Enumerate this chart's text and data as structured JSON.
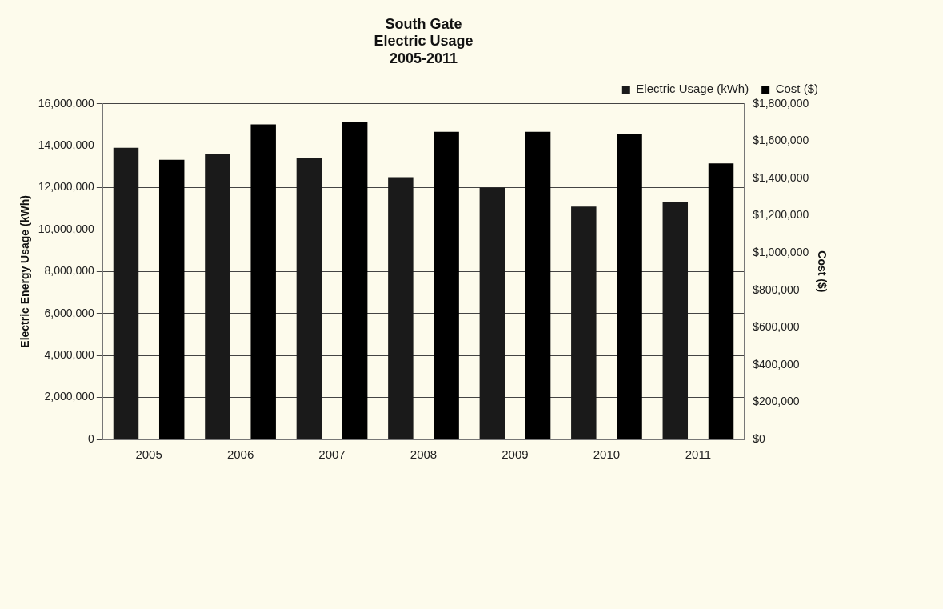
{
  "chart_data": {
    "type": "bar",
    "title": "South Gate\nElectric Usage\n2005-2011",
    "ylabel": "Electric Energy Usage (kWh)",
    "y2label": "Cost ($)",
    "categories": [
      "2005",
      "2006",
      "2007",
      "2008",
      "2009",
      "2010",
      "2011"
    ],
    "series": [
      {
        "name": "Electric Usage (kWh)",
        "color": "#1a1a1a",
        "values": [
          13900000,
          13600000,
          13400000,
          12500000,
          12000000,
          11100000,
          11300000
        ]
      },
      {
        "name": "Cost ($)",
        "color": "#000000",
        "axis": "y2",
        "values": [
          1500000,
          1690000,
          1700000,
          1650000,
          1650000,
          1640000,
          1480000
        ]
      }
    ],
    "ylim": [
      0,
      16000000
    ],
    "yticks": [
      {
        "value": 0,
        "label": "0"
      },
      {
        "value": 2000000,
        "label": "2,000,000"
      },
      {
        "value": 4000000,
        "label": "4,000,000"
      },
      {
        "value": 6000000,
        "label": "6,000,000"
      },
      {
        "value": 8000000,
        "label": "8,000,000"
      },
      {
        "value": 10000000,
        "label": "10,000,000"
      },
      {
        "value": 12000000,
        "label": "12,000,000"
      },
      {
        "value": 14000000,
        "label": "14,000,000"
      },
      {
        "value": 16000000,
        "label": "16,000,000"
      }
    ],
    "y2lim": [
      0,
      1800000
    ],
    "y2ticks": [
      {
        "value": 0,
        "label": "$0"
      },
      {
        "value": 200000,
        "label": "$200,000"
      },
      {
        "value": 400000,
        "label": "$400,000"
      },
      {
        "value": 600000,
        "label": "$600,000"
      },
      {
        "value": 800000,
        "label": "$800,000"
      },
      {
        "value": 1000000,
        "label": "$1,000,000"
      },
      {
        "value": 1200000,
        "label": "$1,200,000"
      },
      {
        "value": 1400000,
        "label": "$1,400,000"
      },
      {
        "value": 1600000,
        "label": "$1,600,000"
      },
      {
        "value": 1800000,
        "label": "$1,800,000"
      }
    ],
    "grid": "y",
    "legend": "top right"
  }
}
